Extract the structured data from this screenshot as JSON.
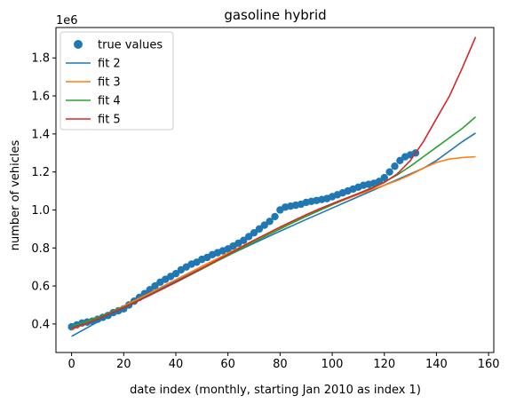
{
  "chart_data": {
    "type": "line",
    "title": "gasoline hybrid",
    "xlabel": "date index (monthly, starting Jan 2010 as index 1)",
    "ylabel": "number of vehicles",
    "y_offset_label": "1e6",
    "xlim": [
      -6,
      162
    ],
    "ylim": [
      0.25,
      1.96
    ],
    "x_ticks": [
      0,
      20,
      40,
      60,
      80,
      100,
      120,
      140,
      160
    ],
    "x_tick_labels": [
      "0",
      "20",
      "40",
      "60",
      "80",
      "100",
      "120",
      "140",
      "160"
    ],
    "y_ticks": [
      0.4,
      0.6,
      0.8,
      1.0,
      1.2,
      1.4,
      1.6,
      1.8
    ],
    "y_tick_labels": [
      "0.4",
      "0.6",
      "0.8",
      "1.0",
      "1.2",
      "1.4",
      "1.6",
      "1.8"
    ],
    "grid": false,
    "legend_position": "top-left",
    "scatter": {
      "name": "true values",
      "color": "#1f77b4",
      "x": [
        0,
        2,
        4,
        6,
        8,
        10,
        12,
        14,
        16,
        18,
        20,
        22,
        24,
        26,
        28,
        30,
        32,
        34,
        36,
        38,
        40,
        42,
        44,
        46,
        48,
        50,
        52,
        54,
        56,
        58,
        60,
        62,
        64,
        66,
        68,
        70,
        72,
        74,
        76,
        78,
        80,
        82,
        84,
        86,
        88,
        90,
        92,
        94,
        96,
        98,
        100,
        102,
        104,
        106,
        108,
        110,
        112,
        114,
        116,
        118,
        120,
        122,
        124,
        126,
        128,
        130,
        132
      ],
      "y": [
        0.385,
        0.395,
        0.405,
        0.41,
        0.415,
        0.425,
        0.435,
        0.445,
        0.46,
        0.47,
        0.48,
        0.5,
        0.52,
        0.54,
        0.56,
        0.58,
        0.6,
        0.62,
        0.635,
        0.65,
        0.665,
        0.685,
        0.7,
        0.715,
        0.725,
        0.74,
        0.75,
        0.765,
        0.775,
        0.785,
        0.795,
        0.81,
        0.825,
        0.84,
        0.86,
        0.88,
        0.9,
        0.92,
        0.94,
        0.965,
        1.0,
        1.015,
        1.02,
        1.025,
        1.03,
        1.04,
        1.045,
        1.05,
        1.055,
        1.06,
        1.07,
        1.08,
        1.09,
        1.1,
        1.11,
        1.12,
        1.13,
        1.135,
        1.14,
        1.15,
        1.17,
        1.2,
        1.23,
        1.26,
        1.28,
        1.29,
        1.3
      ]
    },
    "x": [
      0,
      5,
      10,
      15,
      20,
      25,
      30,
      35,
      40,
      45,
      50,
      55,
      60,
      65,
      70,
      75,
      80,
      85,
      90,
      95,
      100,
      105,
      110,
      115,
      120,
      125,
      130,
      135,
      140,
      145,
      150,
      155
    ],
    "series": [
      {
        "name": "fit 2",
        "color": "#1f77b4",
        "values": [
          0.335,
          0.373,
          0.411,
          0.448,
          0.484,
          0.52,
          0.556,
          0.591,
          0.626,
          0.66,
          0.694,
          0.727,
          0.76,
          0.793,
          0.825,
          0.857,
          0.888,
          0.919,
          0.95,
          0.98,
          1.01,
          1.04,
          1.07,
          1.1,
          1.13,
          1.16,
          1.19,
          1.22,
          1.26,
          1.31,
          1.36,
          1.405
        ]
      },
      {
        "name": "fit 3",
        "color": "#ff7f0e",
        "values": [
          0.37,
          0.4,
          0.43,
          0.462,
          0.495,
          0.529,
          0.563,
          0.598,
          0.633,
          0.668,
          0.703,
          0.738,
          0.773,
          0.807,
          0.841,
          0.874,
          0.907,
          0.938,
          0.969,
          0.998,
          1.027,
          1.055,
          1.081,
          1.106,
          1.13,
          1.155,
          1.185,
          1.22,
          1.25,
          1.268,
          1.276,
          1.28
        ]
      },
      {
        "name": "fit 4",
        "color": "#2ca02c",
        "values": [
          0.39,
          0.41,
          0.435,
          0.462,
          0.49,
          0.52,
          0.552,
          0.585,
          0.619,
          0.654,
          0.689,
          0.725,
          0.76,
          0.796,
          0.831,
          0.866,
          0.9,
          0.934,
          0.966,
          0.997,
          1.028,
          1.058,
          1.087,
          1.116,
          1.148,
          1.185,
          1.23,
          1.28,
          1.33,
          1.38,
          1.43,
          1.49
        ]
      },
      {
        "name": "fit 5",
        "color": "#d62728",
        "values": [
          0.375,
          0.4,
          0.427,
          0.456,
          0.486,
          0.518,
          0.551,
          0.585,
          0.62,
          0.656,
          0.693,
          0.73,
          0.766,
          0.803,
          0.84,
          0.875,
          0.91,
          0.943,
          0.975,
          1.005,
          1.033,
          1.06,
          1.086,
          1.113,
          1.145,
          1.19,
          1.26,
          1.36,
          1.48,
          1.6,
          1.75,
          1.91
        ]
      }
    ]
  }
}
